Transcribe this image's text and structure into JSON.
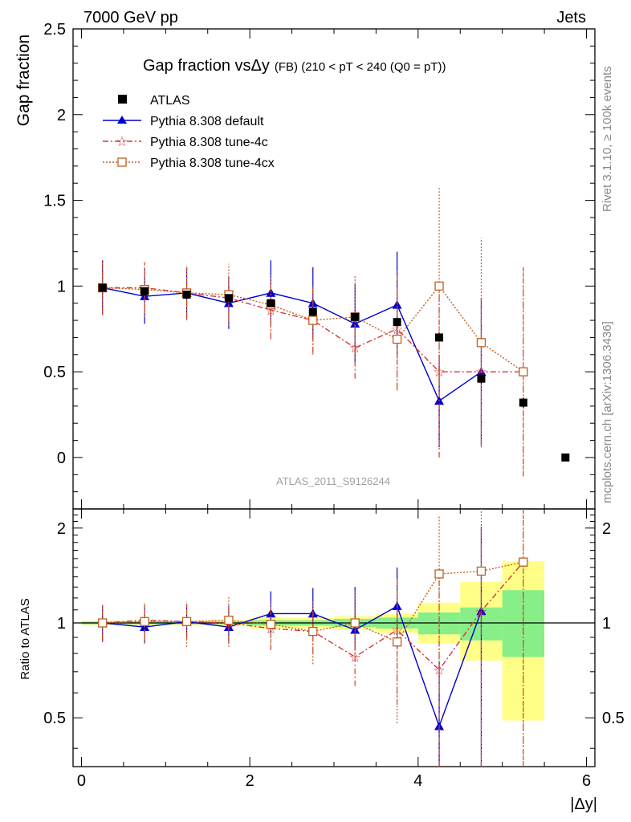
{
  "header": {
    "left": "7000 GeV pp",
    "right": "Jets"
  },
  "side": {
    "rivet": "Rivet 3.1.10, ≥ 100k events",
    "mcplots": "mcplots.cern.ch [arXiv:1306.3436]"
  },
  "chart_data": {
    "type": "scatter",
    "title_main": "Gap fraction vs",
    "title_delta": "Δy",
    "title_tail": "(FB) (210 < pT < 240 (Q0 = pT))",
    "ylabel": "Gap fraction",
    "ratio_ylabel": "Ratio to ATLAS",
    "xlabel": "|Δy|",
    "watermark": "ATLAS_2011_S9126244",
    "xlim": [
      -0.1,
      6.1
    ],
    "ylim": [
      -0.3,
      2.5
    ],
    "ratio_ylim": [
      0.35,
      2.3
    ],
    "x_ticks": [
      "0",
      "2",
      "4",
      "6"
    ],
    "y_ticks": [
      "0",
      "0.5",
      "1",
      "1.5",
      "2",
      "2.5"
    ],
    "ratio_ticks": [
      "0.5",
      "1",
      "2"
    ],
    "legend": [
      "ATLAS",
      "Pythia 8.308 default",
      "Pythia 8.308 tune-4c",
      "Pythia 8.308 tune-4cx"
    ],
    "x": [
      0.25,
      0.75,
      1.25,
      1.75,
      2.25,
      2.75,
      3.25,
      3.75,
      4.25,
      4.75,
      5.25,
      5.75
    ],
    "series": [
      {
        "name": "ATLAS",
        "color": "#000000",
        "values": [
          0.99,
          0.97,
          0.95,
          0.93,
          0.9,
          0.85,
          0.82,
          0.79,
          0.7,
          0.46,
          0.32,
          0.0
        ],
        "errors": [
          0.01,
          0.01,
          0.01,
          0.01,
          0.015,
          0.015,
          0.02,
          0.02,
          0.025,
          0.03,
          0.03,
          0.0
        ]
      },
      {
        "name": "Pythia 8.308 default",
        "color": "#0000cc",
        "values": [
          0.99,
          0.94,
          0.96,
          0.9,
          0.96,
          0.9,
          0.78,
          0.89,
          0.33,
          0.5
        ],
        "errors": [
          0.16,
          0.16,
          0.15,
          0.15,
          0.19,
          0.21,
          0.23,
          0.31,
          0.27,
          0.43
        ]
      },
      {
        "name": "Pythia 8.308 tune-4c",
        "color": "#dd3333",
        "values": [
          0.99,
          0.99,
          0.96,
          0.93,
          0.86,
          0.8,
          0.64,
          0.75,
          0.5,
          0.5,
          0.5
        ],
        "errors": [
          0.15,
          0.15,
          0.15,
          0.14,
          0.17,
          0.19,
          0.18,
          0.35,
          0.5,
          0.43,
          0.61
        ]
      },
      {
        "name": "Pythia 8.308 tune-4cx",
        "color": "#c06020",
        "values": [
          0.99,
          0.98,
          0.96,
          0.95,
          0.89,
          0.8,
          0.82,
          0.69,
          1.0,
          0.67,
          0.5
        ],
        "errors": [
          0.16,
          0.16,
          0.16,
          0.18,
          0.17,
          0.2,
          0.24,
          0.3,
          0.58,
          0.61,
          0.61
        ]
      }
    ],
    "ratio_band": {
      "edges": [
        0.0,
        0.5,
        1.0,
        1.5,
        2.0,
        2.5,
        3.0,
        3.5,
        4.0,
        4.5,
        5.0,
        5.5
      ],
      "inner_lo": [
        0.99,
        0.99,
        0.99,
        0.99,
        0.98,
        0.98,
        0.97,
        0.96,
        0.92,
        0.88,
        0.78
      ],
      "inner_hi": [
        1.01,
        1.01,
        1.01,
        1.01,
        1.02,
        1.02,
        1.03,
        1.04,
        1.08,
        1.12,
        1.27
      ],
      "outer_lo": [
        0.985,
        0.985,
        0.985,
        0.98,
        0.96,
        0.96,
        0.95,
        0.93,
        0.86,
        0.76,
        0.49
      ],
      "outer_hi": [
        1.015,
        1.015,
        1.015,
        1.02,
        1.04,
        1.04,
        1.05,
        1.07,
        1.16,
        1.35,
        1.57
      ]
    },
    "ratios": [
      {
        "name": "Pythia 8.308 default",
        "values": [
          1.0,
          0.97,
          1.01,
          0.97,
          1.07,
          1.07,
          0.95,
          1.13,
          0.47,
          1.09
        ],
        "lo": [
          0.87,
          0.86,
          0.9,
          0.86,
          0.92,
          0.91,
          0.82,
          0.83,
          0.3,
          0.3
        ],
        "hi": [
          1.14,
          1.13,
          1.14,
          1.13,
          1.26,
          1.29,
          1.3,
          1.5,
          0.75,
          2.02
        ]
      },
      {
        "name": "Pythia 8.308 tune-4c",
        "values": [
          1.0,
          1.02,
          1.01,
          1.0,
          0.96,
          0.94,
          0.78,
          0.95,
          0.71,
          1.09,
          1.56
        ],
        "lo": [
          0.88,
          0.89,
          0.89,
          0.87,
          0.82,
          0.8,
          0.63,
          0.55,
          0.3,
          0.3,
          0.3
        ],
        "hi": [
          1.13,
          1.16,
          1.14,
          1.14,
          1.11,
          1.13,
          1.0,
          1.38,
          1.45,
          2.05,
          2.3
        ]
      },
      {
        "name": "Pythia 8.308 tune-4cx",
        "values": [
          1.0,
          1.01,
          1.01,
          1.02,
          0.99,
          0.94,
          1.0,
          0.87,
          1.43,
          1.46,
          1.56
        ],
        "lo": [
          0.87,
          0.86,
          0.84,
          0.84,
          0.82,
          0.74,
          0.76,
          0.48,
          0.62,
          0.3,
          0.3
        ],
        "hi": [
          1.14,
          1.16,
          1.17,
          1.21,
          1.17,
          1.18,
          1.27,
          1.38,
          2.2,
          2.3,
          2.3
        ]
      }
    ]
  }
}
